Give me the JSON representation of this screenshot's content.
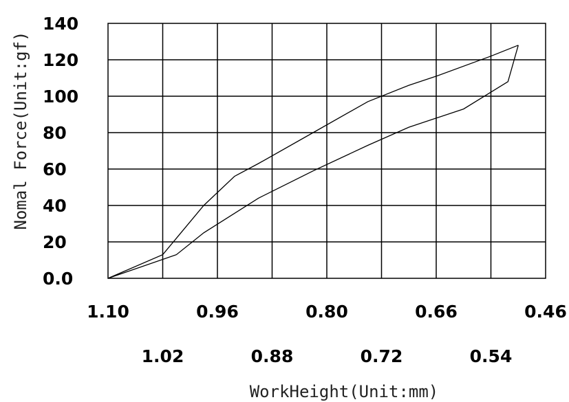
{
  "chart_data": {
    "type": "line",
    "title": "",
    "xlabel": "WorkHeight(Unit:mm)",
    "ylabel": "Nomal Force(Unit:gf)",
    "x_direction": "descending",
    "xlim": [
      1.1,
      0.46
    ],
    "ylim": [
      0,
      140
    ],
    "grid": true,
    "legend": "none",
    "x_ticks_row1": [
      "1.10",
      "0.96",
      "0.80",
      "0.66",
      "0.46"
    ],
    "x_ticks_row2": [
      "1.02",
      "0.88",
      "0.72",
      "0.54"
    ],
    "y_ticks": [
      "0.0",
      "20",
      "40",
      "60",
      "80",
      "100",
      "120",
      "140"
    ],
    "series": [
      {
        "x": [
          1.1,
          1.02,
          0.96,
          0.915,
          0.88,
          0.8,
          0.72,
          0.66,
          0.62,
          0.54,
          0.5
        ],
        "y": [
          0,
          13,
          40,
          56,
          63,
          80,
          97,
          106,
          111,
          122,
          128
        ]
      },
      {
        "x": [
          0.5,
          0.515,
          0.58,
          0.66,
          0.72,
          0.8,
          0.88,
          0.96,
          1.0,
          1.1
        ],
        "y": [
          128,
          108,
          93,
          83,
          73,
          59,
          44,
          25,
          13,
          0
        ]
      }
    ]
  }
}
